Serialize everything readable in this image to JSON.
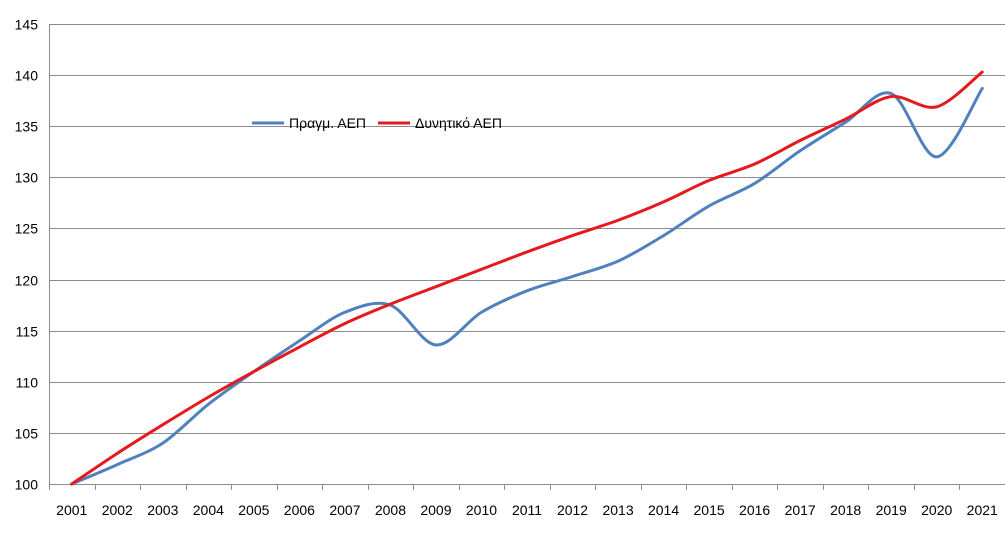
{
  "chart_data": {
    "type": "line",
    "title": "",
    "xlabel": "",
    "ylabel": "",
    "categories": [
      "2001",
      "2002",
      "2003",
      "2004",
      "2005",
      "2006",
      "2007",
      "2008",
      "2009",
      "2010",
      "2011",
      "2012",
      "2013",
      "2014",
      "2015",
      "2016",
      "2017",
      "2018",
      "2019",
      "2020",
      "2021"
    ],
    "ylim": [
      100,
      145
    ],
    "yticks": [
      100,
      105,
      110,
      115,
      120,
      125,
      130,
      135,
      140,
      145
    ],
    "grid": true,
    "legend_position": "upper-left, inside plot",
    "series": [
      {
        "name": "Πραγμ. ΑΕΠ",
        "color": "#4F81BD",
        "values": [
          100.0,
          101.9,
          104.0,
          107.8,
          111.0,
          114.0,
          116.8,
          117.5,
          113.6,
          116.8,
          118.9,
          120.3,
          121.8,
          124.3,
          127.2,
          129.4,
          132.6,
          135.4,
          138.2,
          132.0,
          138.7
        ]
      },
      {
        "name": "Δυνητικό ΑΕΠ",
        "color": "#E41A1C",
        "values": [
          100.0,
          103.0,
          105.8,
          108.5,
          111.0,
          113.4,
          115.7,
          117.6,
          119.3,
          121.0,
          122.7,
          124.3,
          125.8,
          127.6,
          129.7,
          131.3,
          133.6,
          135.7,
          137.9,
          136.9,
          140.3
        ]
      }
    ]
  }
}
